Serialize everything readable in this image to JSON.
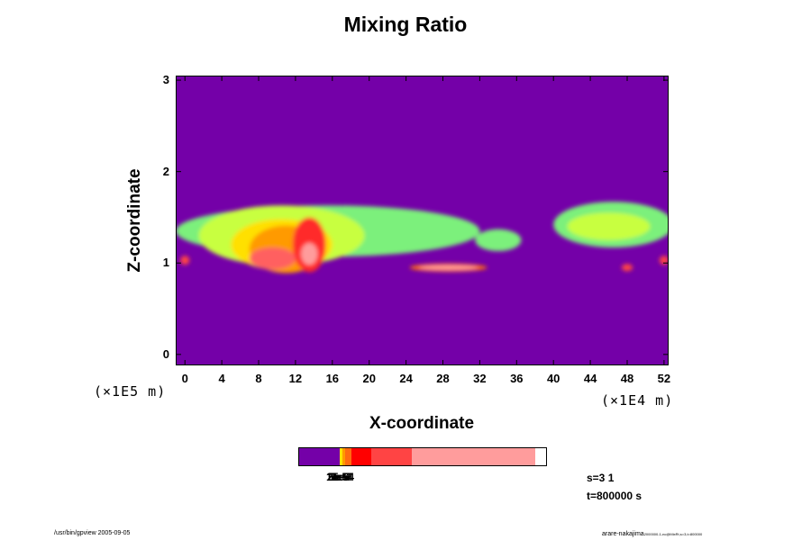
{
  "chart_data": {
    "type": "heatmap",
    "title": "Mixing Ratio",
    "xlabel": "X-coordinate",
    "ylabel": "Z-coordinate",
    "x_unit": "(×1E4 m)",
    "y_unit": "(×1E5 m)",
    "xlim": [
      -1,
      52.5
    ],
    "ylim": [
      -0.12,
      3.05
    ],
    "x_ticks": [
      "0",
      "4",
      "8",
      "12",
      "16",
      "20",
      "24",
      "28",
      "32",
      "36",
      "40",
      "44",
      "48",
      "52"
    ],
    "y_ticks": [
      "0",
      "1",
      "2",
      "3"
    ],
    "background_color": "#7400a8",
    "colorbar": {
      "colors": [
        "#7400a8",
        "#ffe000",
        "#ff9a00",
        "#ff6a10",
        "#ff0000",
        "#ff4444",
        "#ff9c9c"
      ],
      "labels": [
        "1e-5",
        "2e-5",
        "5e-5",
        "1e-4",
        "2e-4",
        "5e-4"
      ]
    },
    "regions": [
      {
        "level": "light",
        "color": "#7bf07b",
        "cx": 15.5,
        "cz": 1.35,
        "rx": 16.5,
        "rz": 0.28
      },
      {
        "level": "light",
        "color": "#7bf07b",
        "cx": 46.5,
        "cz": 1.42,
        "rx": 6.5,
        "rz": 0.25
      },
      {
        "level": "light",
        "color": "#7bf07b",
        "cx": 34.0,
        "cz": 1.25,
        "rx": 2.5,
        "rz": 0.12
      },
      {
        "level": "mid",
        "color": "#c8ff40",
        "cx": 10.5,
        "cz": 1.3,
        "rx": 9.0,
        "rz": 0.33
      },
      {
        "level": "mid",
        "color": "#c8ff40",
        "cx": 46.0,
        "cz": 1.4,
        "rx": 4.5,
        "rz": 0.15
      },
      {
        "level": "high",
        "color": "#ffe000",
        "cx": 10.5,
        "cz": 1.2,
        "rx": 5.5,
        "rz": 0.28
      },
      {
        "level": "high",
        "color": "#ff9a00",
        "cx": 11.0,
        "cz": 1.15,
        "rx": 4.0,
        "rz": 0.26
      },
      {
        "level": "peak",
        "color": "#ff2a2a",
        "cx": 13.5,
        "cz": 1.2,
        "rx": 1.8,
        "rz": 0.3
      },
      {
        "level": "peak",
        "color": "#ff6060",
        "cx": 9.5,
        "cz": 1.05,
        "rx": 2.5,
        "rz": 0.12
      },
      {
        "level": "peak",
        "color": "#ff9c9c",
        "cx": 13.5,
        "cz": 1.1,
        "rx": 0.9,
        "rz": 0.12
      },
      {
        "level": "band",
        "color": "#ff6a10",
        "cx": 28.6,
        "cz": 0.95,
        "rx": 4.2,
        "rz": 0.045
      },
      {
        "level": "band",
        "color": "#ff9c9c",
        "cx": 28.6,
        "cz": 0.95,
        "rx": 3.2,
        "rz": 0.025
      },
      {
        "level": "edge",
        "color": "#ff4444",
        "cx": 0.0,
        "cz": 1.03,
        "rx": 0.5,
        "rz": 0.05
      },
      {
        "level": "edge",
        "color": "#ff4444",
        "cx": 52.0,
        "cz": 1.03,
        "rx": 0.5,
        "rz": 0.05
      },
      {
        "level": "edge",
        "color": "#ff4444",
        "cx": 48.0,
        "cz": 0.95,
        "rx": 0.6,
        "rz": 0.04
      }
    ]
  },
  "info": {
    "s_label": "s=3 1",
    "t_label": "t=800000 s"
  },
  "footer": {
    "left": "/usr/bin/gpview 2005-09-05",
    "right_main": "arare-nakajima",
    "right_small": "2000000-1-nc@MixRt,s=3,t=800000"
  }
}
